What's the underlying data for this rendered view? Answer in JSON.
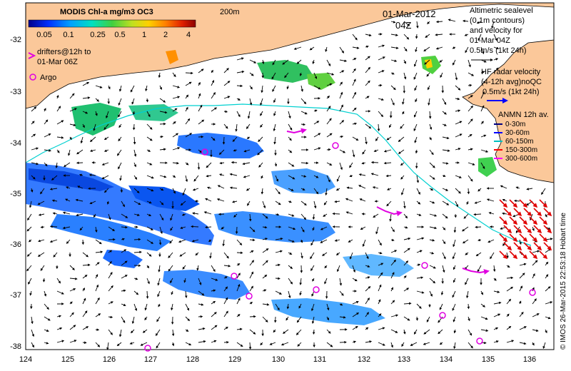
{
  "map": {
    "lon_ticks": [
      "124",
      "125",
      "126",
      "127",
      "128",
      "129",
      "130",
      "131",
      "132",
      "133",
      "134",
      "135",
      "136"
    ],
    "lat_ticks": [
      "-32",
      "-33",
      "-34",
      "-35",
      "-36",
      "-37",
      "-38"
    ],
    "land_color": "#fbc89a",
    "coast_contour_color": "#00d0d0"
  },
  "colorbar": {
    "title": "MODIS Chl-a mg/m3 OC3",
    "labels": [
      "0.05",
      "0.1",
      "0.25",
      "0.5",
      "1",
      "2",
      "4"
    ],
    "stops": [
      "#00008b",
      "#0030ff",
      "#00a0ff",
      "#00e0c0",
      "#40d040",
      "#c0e020",
      "#ffd000",
      "#ff8000",
      "#e02000",
      "#8b0000"
    ]
  },
  "header": {
    "depth_label": "200m",
    "date": "01-Mar-2012",
    "time": "04Z"
  },
  "legend_left": {
    "drifters_line1": "drifters@12h to",
    "drifters_line2": "01-Mar 06Z",
    "argo_label": "Argo"
  },
  "legend_right": {
    "alt_line1": "Altimetric sealevel",
    "alt_line2": "(0.1m contours)",
    "alt_line3": "and velocity for",
    "alt_line4": "01-Mar 04Z",
    "alt_scale": "0.5m/s (1kt 24h)",
    "hf_line1": "HF radar velocity",
    "hf_line2": "(4-12h avg)noQC",
    "hf_scale": "0.5m/s (1kt 24h)",
    "anmn_title": "ANMN 12h av.",
    "anmn_items": [
      {
        "label": "0-30m",
        "color": "#000080"
      },
      {
        "label": "30-60m",
        "color": "#0000ff"
      },
      {
        "label": "60-150m",
        "color": "#00c0c0"
      },
      {
        "label": "150-300m",
        "color": "#ff0000"
      },
      {
        "label": "300-600m",
        "color": "#ff00ff"
      }
    ]
  },
  "credit": "© IMOS 26-Mar-2015 22:53:18 Hobart time"
}
